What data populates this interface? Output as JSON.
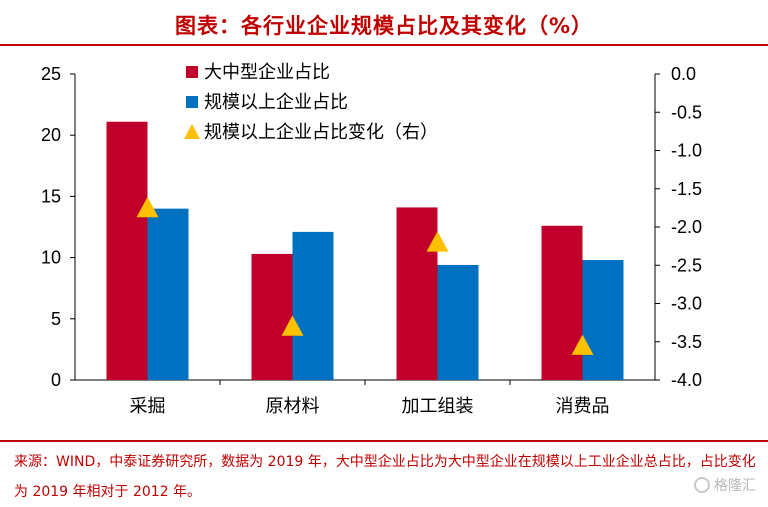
{
  "title": "图表：各行业企业规模占比及其变化（%）",
  "source_text": "来源：WIND，中泰证券研究所，数据为 2019 年，大中型企业占比为大中型企业在规模以上工业企业总占比，占比变化为 2019 年相对于 2012 年。",
  "watermark": "格隆汇",
  "colors": {
    "accent": "#c00000",
    "series_red": "#c0002a",
    "series_blue": "#0070c0",
    "series_marker": "#ffc000"
  },
  "chart_data": {
    "type": "bar",
    "categories": [
      "采掘",
      "原材料",
      "加工组装",
      "消费品"
    ],
    "series": [
      {
        "name": "大中型企业占比",
        "axis": "left",
        "kind": "bar",
        "values": [
          21.1,
          10.3,
          14.1,
          12.6
        ]
      },
      {
        "name": "规模以上企业占比",
        "axis": "left",
        "kind": "bar",
        "values": [
          14.0,
          12.1,
          9.4,
          9.8
        ]
      },
      {
        "name": "规模以上企业占比变化（右）",
        "axis": "right",
        "kind": "marker",
        "marker": "triangle",
        "values": [
          -1.75,
          -3.3,
          -2.2,
          -3.55
        ]
      }
    ],
    "y_left": {
      "min": 0,
      "max": 25,
      "ticks": [
        "0",
        "5",
        "10",
        "15",
        "20",
        "25"
      ]
    },
    "y_right": {
      "min": -4.0,
      "max": 0.0,
      "ticks": [
        "0.0",
        "-0.5",
        "-1.0",
        "-1.5",
        "-2.0",
        "-2.5",
        "-3.0",
        "-3.5",
        "-4.0"
      ]
    },
    "legend_position": "top-left inside",
    "grid": false
  }
}
